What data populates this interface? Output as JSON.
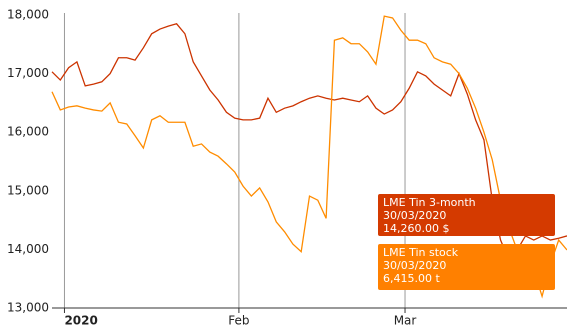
{
  "chart_data": {
    "type": "line",
    "x": [
      1,
      2,
      3,
      4,
      5,
      6,
      7,
      8,
      9,
      10,
      11,
      12,
      13,
      14,
      15,
      16,
      17,
      18,
      19,
      20,
      21,
      22,
      23,
      24,
      25,
      26,
      27,
      28,
      29,
      30,
      31,
      32,
      33,
      34,
      35,
      36,
      37,
      38,
      39,
      40,
      41,
      42,
      43,
      44,
      45,
      46,
      47,
      48,
      49,
      50,
      51,
      52,
      53,
      54,
      55,
      56,
      57,
      58,
      59,
      60,
      61,
      62,
      63
    ],
    "xlim": [
      1,
      63
    ],
    "xticks": [
      {
        "value": 2.5,
        "label": "2020"
      },
      {
        "value": 23.5,
        "label": "Feb"
      },
      {
        "value": 43.5,
        "label": "Mar"
      }
    ],
    "ylim": [
      13000,
      18000
    ],
    "yticks": [
      {
        "value": 13000,
        "label": "13,000"
      },
      {
        "value": 14000,
        "label": "14,000"
      },
      {
        "value": 15000,
        "label": "15,000"
      },
      {
        "value": 16000,
        "label": "16,000"
      },
      {
        "value": 17000,
        "label": "17,000"
      },
      {
        "value": 18000,
        "label": "18,000"
      }
    ],
    "grid": "x",
    "series": [
      {
        "name": "LME Tin 3-month",
        "color": "#cc3300",
        "values": [
          17030,
          16890,
          17100,
          17200,
          16790,
          16820,
          16860,
          17000,
          17270,
          17270,
          17230,
          17440,
          17680,
          17760,
          17810,
          17850,
          17680,
          17200,
          16960,
          16720,
          16550,
          16340,
          16240,
          16210,
          16210,
          16240,
          16580,
          16340,
          16410,
          16450,
          16520,
          16580,
          16620,
          16580,
          16550,
          16580,
          16550,
          16520,
          16620,
          16410,
          16310,
          16380,
          16520,
          16750,
          17030,
          16960,
          16820,
          16720,
          16620,
          17000,
          16650,
          16210,
          15870,
          14840,
          14160,
          13820,
          13990,
          14230,
          14160,
          14230,
          14160,
          14190,
          14230
        ]
      },
      {
        "name": "LME Tin stock",
        "color": "#ff8c00",
        "values": [
          16690,
          16380,
          16430,
          16450,
          16410,
          16380,
          16360,
          16500,
          16170,
          16140,
          15940,
          15730,
          16210,
          16280,
          16170,
          16170,
          16170,
          15760,
          15800,
          15660,
          15590,
          15460,
          15320,
          15080,
          14910,
          15050,
          14810,
          14470,
          14300,
          14090,
          13960,
          14910,
          14840,
          14530,
          17570,
          17610,
          17510,
          17510,
          17370,
          17160,
          17980,
          17950,
          17740,
          17570,
          17570,
          17510,
          17270,
          17200,
          17160,
          17000,
          16750,
          16410,
          16000,
          15530,
          14840,
          14370,
          13990,
          13850,
          13650,
          13200,
          13750,
          14160,
          13990
        ]
      }
    ],
    "tooltips": [
      {
        "color": "#d43a00",
        "lines": [
          "LME Tin 3-month",
          "30/03/2020",
          "14,260.00 $"
        ]
      },
      {
        "color": "#ff8000",
        "lines": [
          "LME Tin stock",
          "30/03/2020",
          "6,415.00 t"
        ]
      }
    ]
  }
}
